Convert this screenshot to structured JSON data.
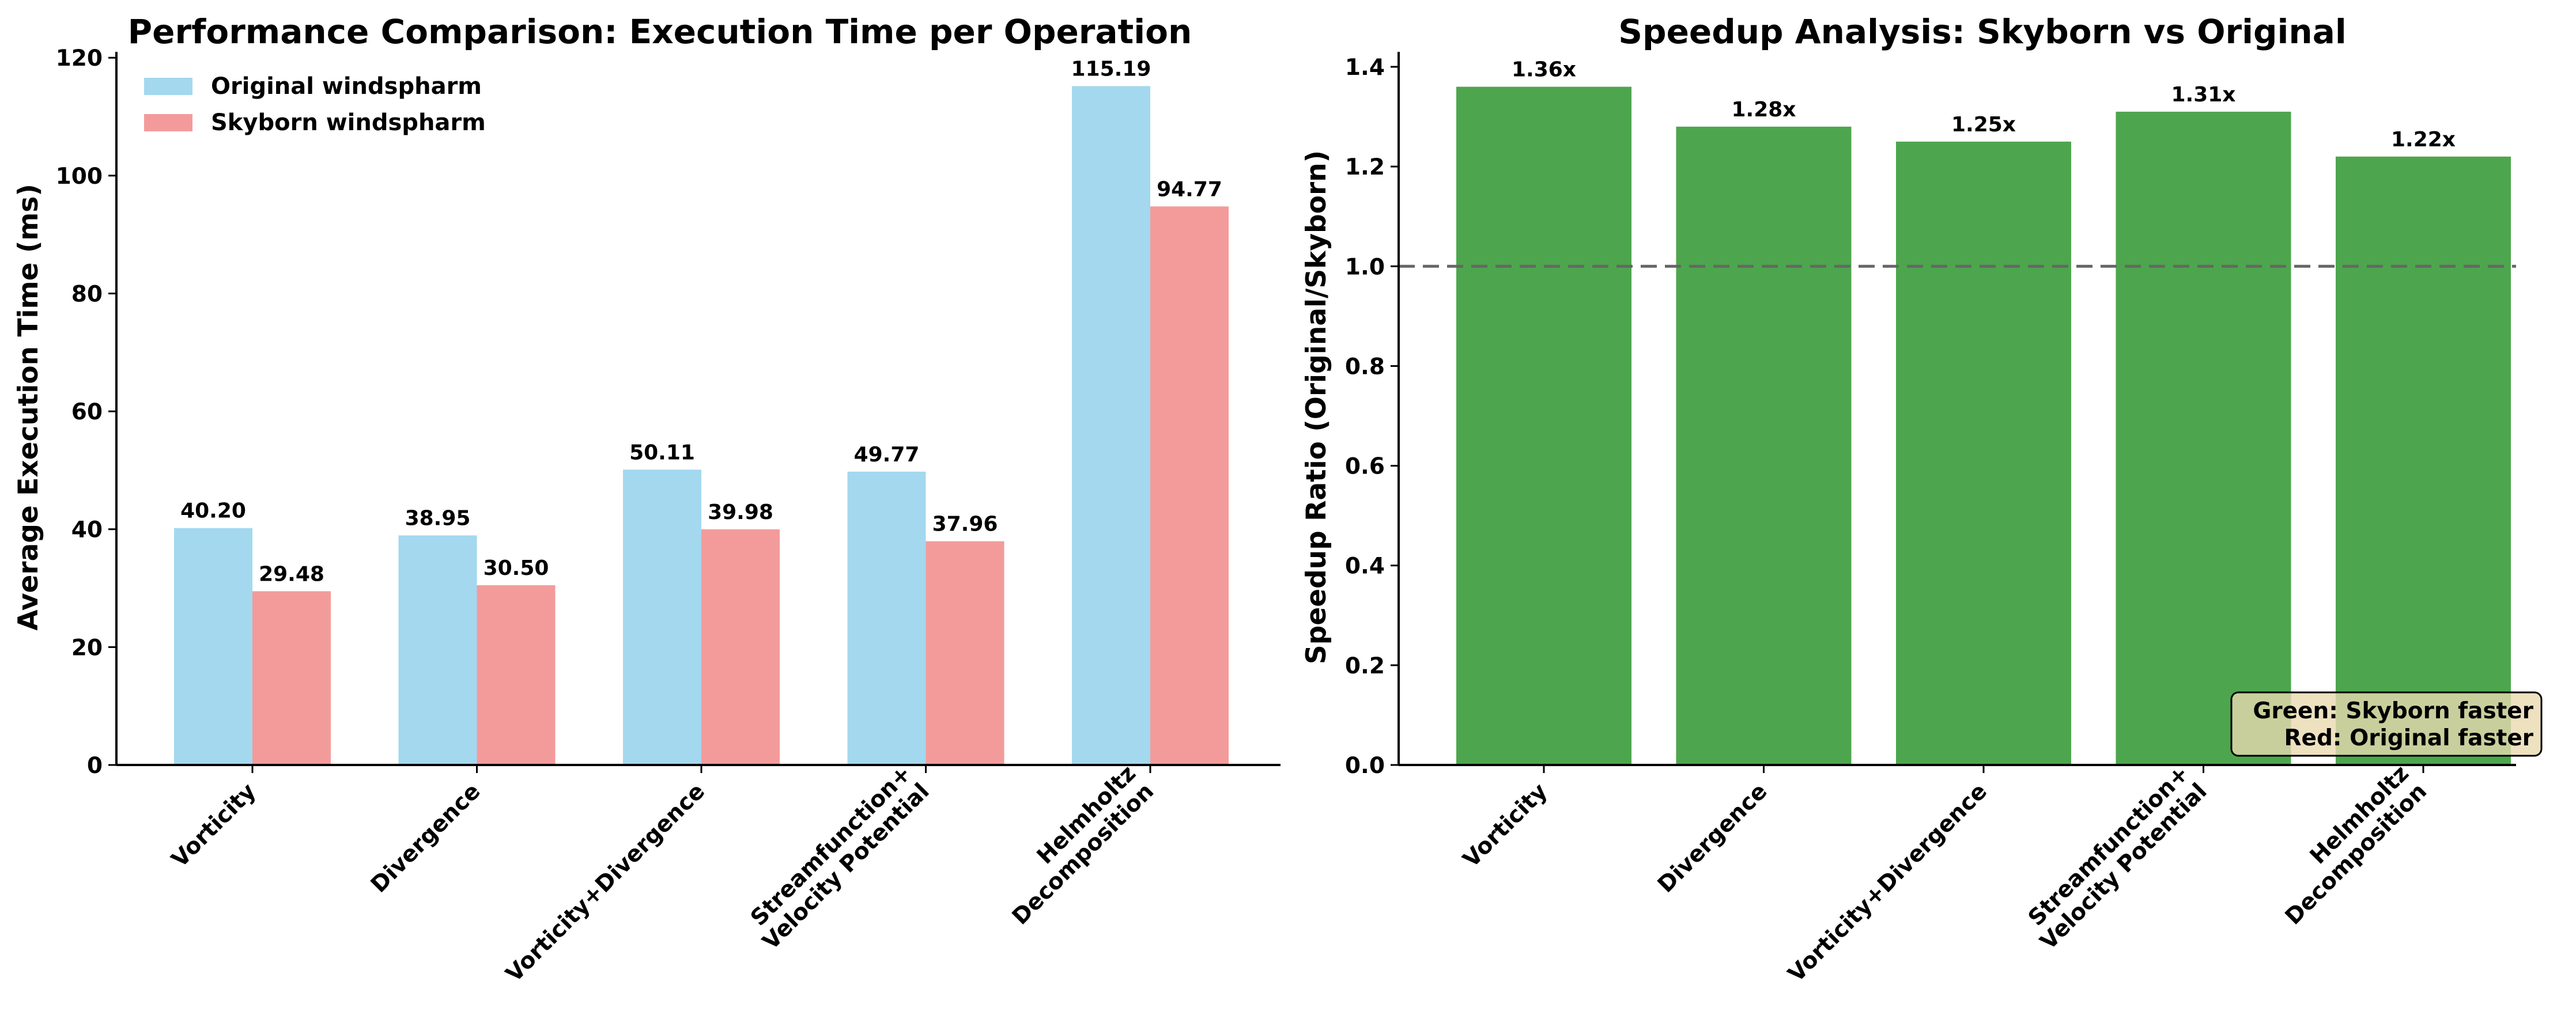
{
  "colors": {
    "original": "#a3d8ef",
    "skyborn": "#f39b9b",
    "speedup": "#4da64d",
    "note_bg": "#e8d9b0"
  },
  "chart_data": [
    {
      "type": "bar",
      "title": "Performance Comparison: Execution Time per Operation",
      "xlabel": "",
      "ylabel": "Average Execution Time (ms)",
      "ylim": [
        0,
        121
      ],
      "yticks": [
        0,
        20,
        40,
        60,
        80,
        100,
        120
      ],
      "categories": [
        [
          "Vorticity"
        ],
        [
          "Divergence"
        ],
        [
          "Vorticity+Divergence"
        ],
        [
          "Streamfunction+",
          "Velocity Potential"
        ],
        [
          "Helmholtz",
          "Decomposition"
        ]
      ],
      "series": [
        {
          "name": "Original windspharm",
          "values": [
            40.2,
            38.95,
            50.11,
            49.77,
            115.19
          ]
        },
        {
          "name": "Skyborn windspharm",
          "values": [
            29.48,
            30.5,
            39.98,
            37.96,
            94.77
          ]
        }
      ],
      "legend_position": "upper-left",
      "grid": false
    },
    {
      "type": "bar",
      "title": "Speedup Analysis: Skyborn vs Original",
      "xlabel": "",
      "ylabel": "Speedup Ratio (Original/Skyborn)",
      "ylim": [
        0,
        1.43
      ],
      "yticks": [
        0.0,
        0.2,
        0.4,
        0.6,
        0.8,
        1.0,
        1.2,
        1.4
      ],
      "categories": [
        [
          "Vorticity"
        ],
        [
          "Divergence"
        ],
        [
          "Vorticity+Divergence"
        ],
        [
          "Streamfunction+",
          "Velocity Potential"
        ],
        [
          "Helmholtz",
          "Decomposition"
        ]
      ],
      "values": [
        1.36,
        1.28,
        1.25,
        1.31,
        1.22
      ],
      "value_labels": [
        "1.36x",
        "1.28x",
        "1.25x",
        "1.31x",
        "1.22x"
      ],
      "reference_line": 1.0,
      "annotation": [
        "Green: Skyborn faster",
        "Red: Original faster"
      ],
      "grid": false
    }
  ]
}
